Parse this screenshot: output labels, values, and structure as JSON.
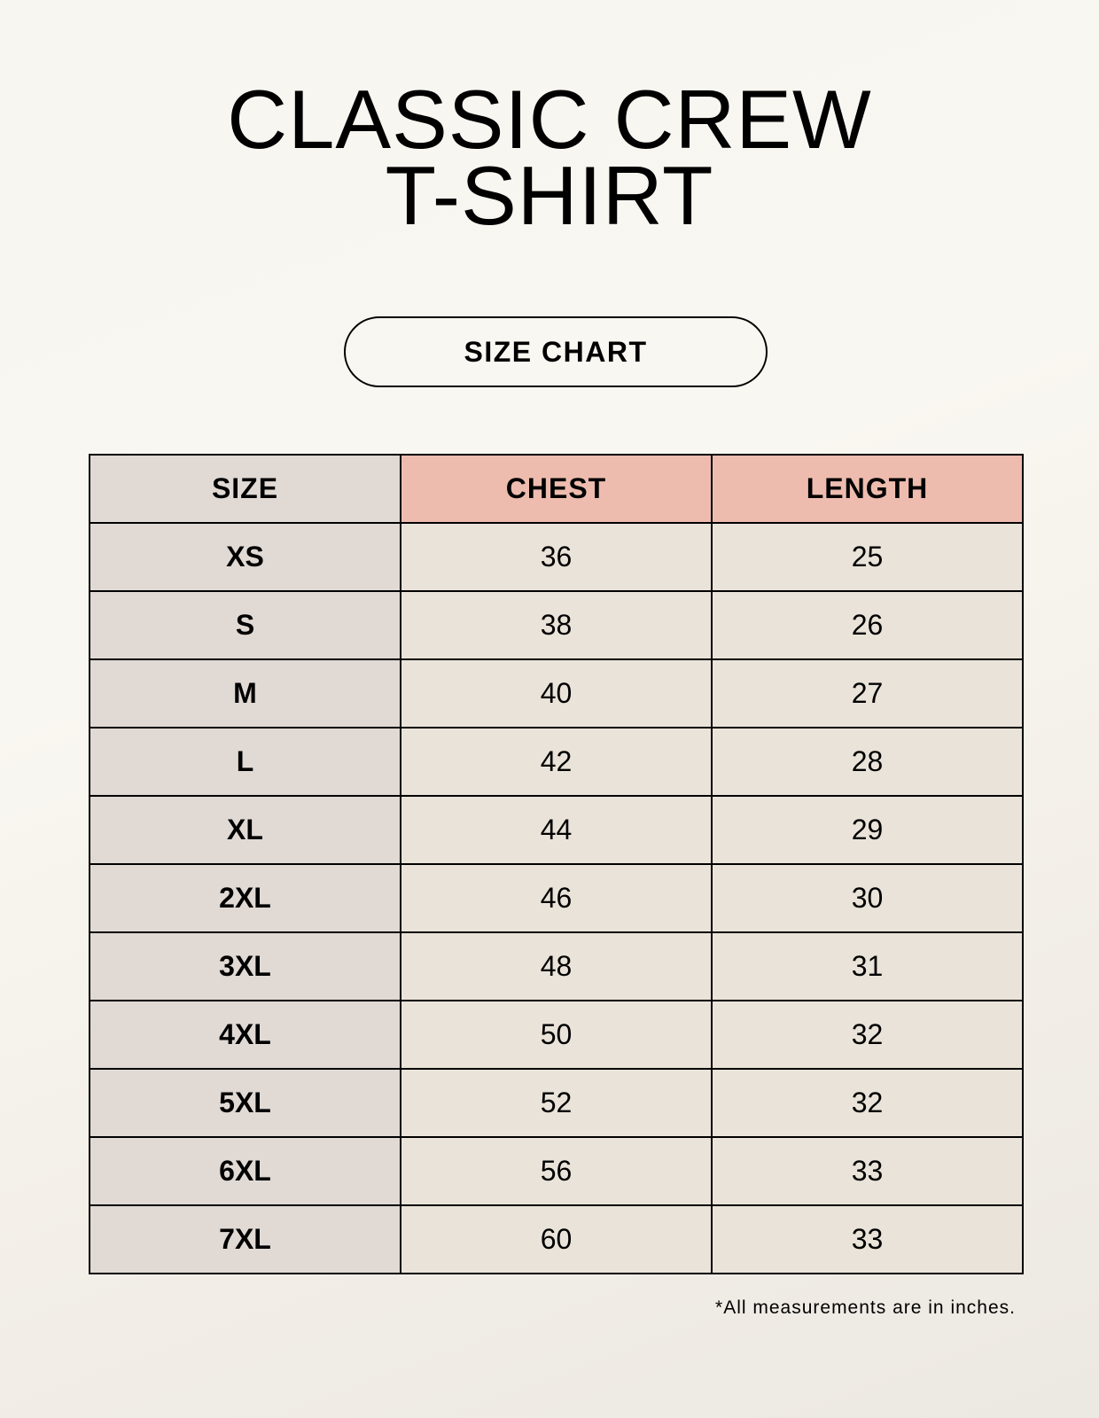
{
  "title": {
    "line1": "CLASSIC CREW",
    "line2": "T-SHIRT"
  },
  "badge": "SIZE CHART",
  "table": {
    "headers": [
      "SIZE",
      "CHEST",
      "LENGTH"
    ],
    "rows": [
      [
        "XS",
        "36",
        "25"
      ],
      [
        "S",
        "38",
        "26"
      ],
      [
        "M",
        "40",
        "27"
      ],
      [
        "L",
        "42",
        "28"
      ],
      [
        "XL",
        "44",
        "29"
      ],
      [
        "2XL",
        "46",
        "30"
      ],
      [
        "3XL",
        "48",
        "31"
      ],
      [
        "4XL",
        "50",
        "32"
      ],
      [
        "5XL",
        "52",
        "32"
      ],
      [
        "6XL",
        "56",
        "33"
      ],
      [
        "7XL",
        "60",
        "33"
      ]
    ]
  },
  "footnote": "*All measurements are in inches.",
  "colors": {
    "header_highlight": "#eebcae",
    "size_column": "#e0d9d4",
    "value_cells": "#eae3d9"
  }
}
